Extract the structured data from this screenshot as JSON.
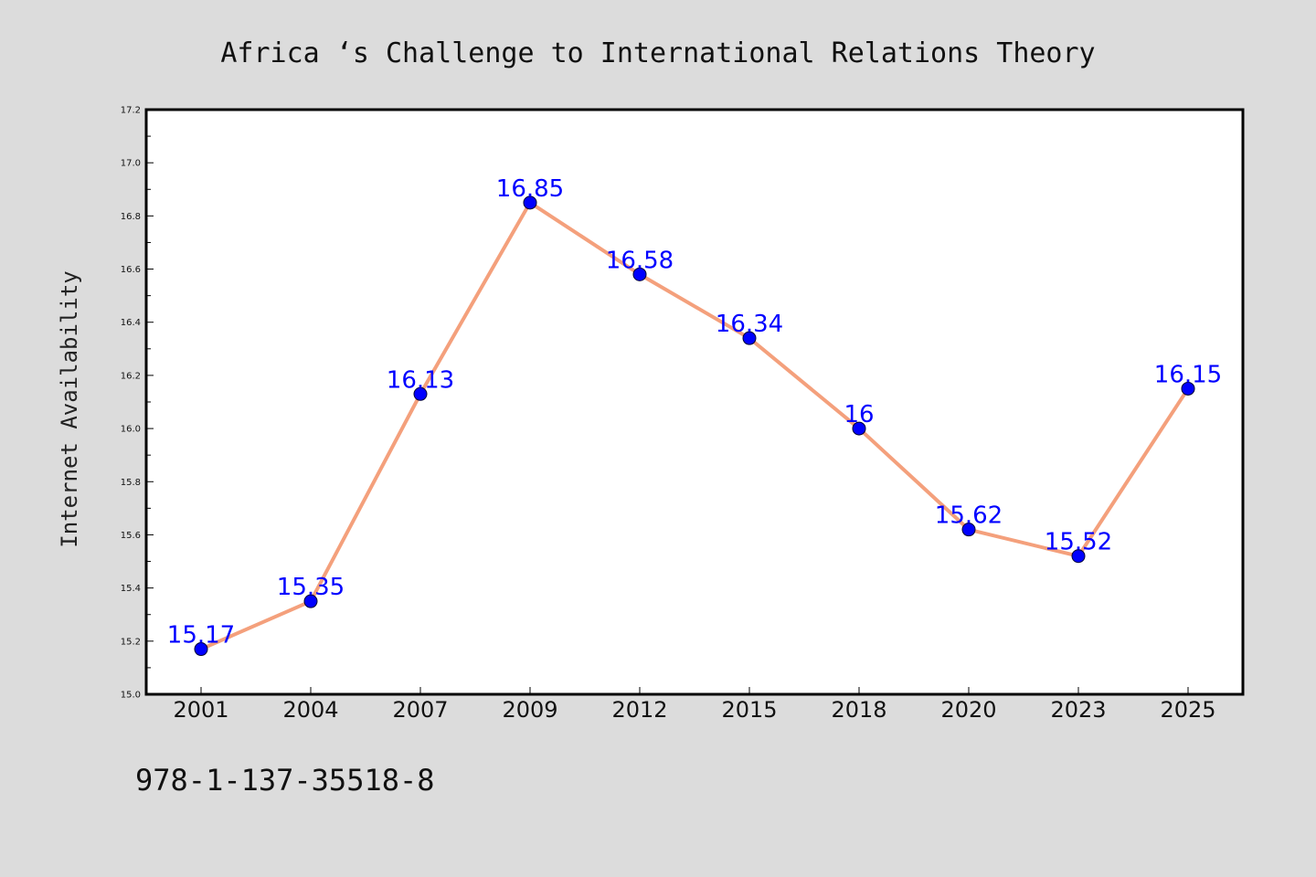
{
  "chart_data": {
    "type": "line",
    "title": "Africa ‘s Challenge to International Relations Theory",
    "xlabel": "",
    "ylabel": "Internet Availability",
    "categories": [
      "2001",
      "2004",
      "2007",
      "2009",
      "2012",
      "2015",
      "2018",
      "2020",
      "2023",
      "2025"
    ],
    "series": [
      {
        "values": [
          15.17,
          15.35,
          16.13,
          16.85,
          16.58,
          16.34,
          16.0,
          15.62,
          15.52,
          16.15
        ],
        "data_labels": [
          "15.17",
          "15.35",
          "16.13",
          "16.85",
          "16.58",
          "16.34",
          "16",
          "15.62",
          "15.52",
          "16.15"
        ]
      }
    ],
    "ylim": [
      15.0,
      17.2
    ],
    "yticks": [
      "15.0",
      "15.2",
      "15.4",
      "15.6",
      "15.8",
      "16.0",
      "16.2",
      "16.4",
      "16.6",
      "16.8",
      "17.0",
      "17.2"
    ],
    "grid": false,
    "legend": "none",
    "colors": {
      "line": "#f4a07c",
      "marker": "#0000ff",
      "data_label": "#0000ff",
      "background": "#dcdcdc",
      "plot_area": "#ffffff"
    }
  },
  "footer": {
    "isbn": "978-1-137-35518-8"
  }
}
